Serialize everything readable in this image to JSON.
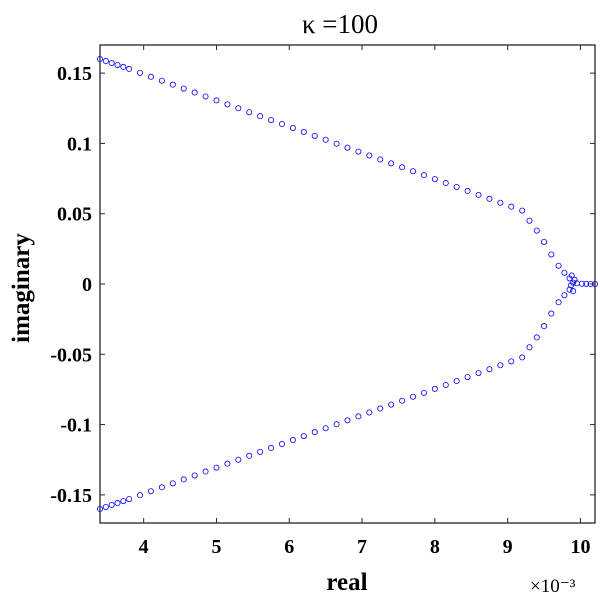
{
  "chart_data": {
    "type": "scatter",
    "title": "κ =100",
    "xlabel": "real",
    "ylabel": "imaginary",
    "x_exponent_label": "×10⁻³",
    "x_tick_labels": [
      "4",
      "5",
      "6",
      "7",
      "8",
      "9",
      "10"
    ],
    "y_tick_labels": [
      "0.15",
      "0.1",
      "0.05",
      "0",
      "-0.05",
      "-0.1",
      "-0.15"
    ],
    "xlim": [
      3.4,
      10.2
    ],
    "ylim": [
      -0.17,
      0.17
    ],
    "grid": false,
    "marker": "open-circle",
    "marker_color": "#0000ff",
    "series": [
      {
        "values": [
          [
            3.4,
            0.16
          ],
          [
            3.48,
            0.1586
          ],
          [
            3.56,
            0.1572
          ],
          [
            3.64,
            0.1558
          ],
          [
            3.72,
            0.1544
          ],
          [
            3.8,
            0.153
          ],
          [
            3.95,
            0.1502
          ],
          [
            4.1,
            0.1474
          ],
          [
            4.25,
            0.1446
          ],
          [
            4.4,
            0.1418
          ],
          [
            4.55,
            0.139
          ],
          [
            4.7,
            0.1362
          ],
          [
            4.85,
            0.1334
          ],
          [
            5.0,
            0.1306
          ],
          [
            5.15,
            0.1278
          ],
          [
            5.3,
            0.125
          ],
          [
            5.45,
            0.1222
          ],
          [
            5.6,
            0.1194
          ],
          [
            5.75,
            0.1166
          ],
          [
            5.9,
            0.1138
          ],
          [
            6.05,
            0.111
          ],
          [
            6.2,
            0.1082
          ],
          [
            6.35,
            0.1054
          ],
          [
            6.5,
            0.1026
          ],
          [
            6.65,
            0.0998
          ],
          [
            6.8,
            0.097
          ],
          [
            6.95,
            0.0942
          ],
          [
            7.1,
            0.0914
          ],
          [
            7.25,
            0.0886
          ],
          [
            7.4,
            0.0858
          ],
          [
            7.55,
            0.083
          ],
          [
            7.7,
            0.0802
          ],
          [
            7.85,
            0.0774
          ],
          [
            8.0,
            0.0746
          ],
          [
            8.15,
            0.0718
          ],
          [
            8.3,
            0.069
          ],
          [
            8.45,
            0.0662
          ],
          [
            8.6,
            0.0634
          ],
          [
            8.75,
            0.0606
          ],
          [
            8.9,
            0.0578
          ],
          [
            9.05,
            0.055
          ],
          [
            9.2,
            0.0522
          ],
          [
            9.3,
            0.045
          ],
          [
            9.4,
            0.038
          ],
          [
            9.5,
            0.03
          ],
          [
            9.6,
            0.021
          ],
          [
            9.7,
            0.013
          ],
          [
            9.78,
            0.008
          ],
          [
            9.85,
            0.004
          ],
          [
            9.9,
            0.001
          ],
          [
            9.95,
            0.0005
          ],
          [
            10.02,
            0.0002
          ],
          [
            10.08,
            0.0001
          ],
          [
            10.14,
            0.0
          ],
          [
            10.2,
            0.0
          ],
          [
            9.87,
            -0.001
          ],
          [
            9.92,
            0.003
          ],
          [
            9.88,
            0.006
          ],
          [
            9.9,
            -0.005
          ],
          [
            9.85,
            -0.004
          ],
          [
            9.78,
            -0.008
          ],
          [
            9.7,
            -0.013
          ],
          [
            9.6,
            -0.021
          ],
          [
            9.5,
            -0.03
          ],
          [
            9.4,
            -0.038
          ],
          [
            9.3,
            -0.045
          ],
          [
            9.2,
            -0.0522
          ],
          [
            9.05,
            -0.055
          ],
          [
            8.9,
            -0.0578
          ],
          [
            8.75,
            -0.0606
          ],
          [
            8.6,
            -0.0634
          ],
          [
            8.45,
            -0.0662
          ],
          [
            8.3,
            -0.069
          ],
          [
            8.15,
            -0.0718
          ],
          [
            8.0,
            -0.0746
          ],
          [
            7.85,
            -0.0774
          ],
          [
            7.7,
            -0.0802
          ],
          [
            7.55,
            -0.083
          ],
          [
            7.4,
            -0.0858
          ],
          [
            7.25,
            -0.0886
          ],
          [
            7.1,
            -0.0914
          ],
          [
            6.95,
            -0.0942
          ],
          [
            6.8,
            -0.097
          ],
          [
            6.65,
            -0.0998
          ],
          [
            6.5,
            -0.1026
          ],
          [
            6.35,
            -0.1054
          ],
          [
            6.2,
            -0.1082
          ],
          [
            6.05,
            -0.111
          ],
          [
            5.9,
            -0.1138
          ],
          [
            5.75,
            -0.1166
          ],
          [
            5.6,
            -0.1194
          ],
          [
            5.45,
            -0.1222
          ],
          [
            5.3,
            -0.125
          ],
          [
            5.15,
            -0.1278
          ],
          [
            5.0,
            -0.1306
          ],
          [
            4.85,
            -0.1334
          ],
          [
            4.7,
            -0.1362
          ],
          [
            4.55,
            -0.139
          ],
          [
            4.4,
            -0.1418
          ],
          [
            4.25,
            -0.1446
          ],
          [
            4.1,
            -0.1474
          ],
          [
            3.95,
            -0.1502
          ],
          [
            3.8,
            -0.153
          ],
          [
            3.72,
            -0.1544
          ],
          [
            3.64,
            -0.1558
          ],
          [
            3.56,
            -0.1572
          ],
          [
            3.48,
            -0.1586
          ],
          [
            3.4,
            -0.16
          ]
        ]
      }
    ]
  }
}
